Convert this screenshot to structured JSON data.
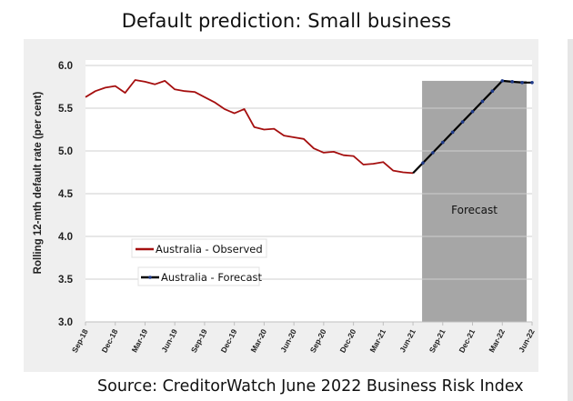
{
  "title": "Default prediction: Small business",
  "source": "Source: CreditorWatch June 2022 Business Risk Index",
  "chart_data": {
    "type": "line",
    "ylabel": "Rolling 12-mth default rate (per cent)",
    "xlabel": "",
    "ylim": [
      3.0,
      6.0
    ],
    "yticks": [
      "3.0",
      "3.5",
      "4.0",
      "4.5",
      "5.0",
      "5.5",
      "6.0"
    ],
    "x_tick_labels": [
      "Sep-18",
      "Dec-18",
      "Mar-19",
      "Jun-19",
      "Sep-19",
      "Dec-19",
      "Mar-20",
      "Jun-20",
      "Sep-20",
      "Dec-20",
      "Mar-21",
      "Jun-21",
      "Sep-21",
      "Dec-21",
      "Mar-22",
      "Jun-22"
    ],
    "grid": true,
    "legend_position": "lower-left",
    "annotation": "Forecast",
    "forecast_region": [
      "Jun-21",
      "Jun-22"
    ],
    "series": [
      {
        "name": "Australia - Observed",
        "color": "#a50f0f",
        "x": [
          "Sep-18",
          "Oct-18",
          "Nov-18",
          "Dec-18",
          "Jan-19",
          "Feb-19",
          "Mar-19",
          "Apr-19",
          "May-19",
          "Jun-19",
          "Jul-19",
          "Aug-19",
          "Sep-19",
          "Oct-19",
          "Nov-19",
          "Dec-19",
          "Jan-20",
          "Feb-20",
          "Mar-20",
          "Apr-20",
          "May-20",
          "Jun-20",
          "Jul-20",
          "Aug-20",
          "Sep-20",
          "Oct-20",
          "Nov-20",
          "Dec-20",
          "Jan-21",
          "Feb-21",
          "Mar-21",
          "Apr-21",
          "May-21",
          "Jun-21"
        ],
        "values": [
          5.63,
          5.7,
          5.74,
          5.76,
          5.68,
          5.83,
          5.81,
          5.78,
          5.82,
          5.72,
          5.7,
          5.69,
          5.63,
          5.57,
          5.49,
          5.44,
          5.49,
          5.28,
          5.25,
          5.26,
          5.18,
          5.16,
          5.14,
          5.03,
          4.98,
          4.99,
          4.95,
          4.94,
          4.84,
          4.85,
          4.87,
          4.77,
          4.75,
          4.74
        ]
      },
      {
        "name": "Australia - Forecast",
        "color": "#000000",
        "marker_color": "#1f3a8a",
        "x": [
          "Jun-21",
          "Jul-21",
          "Aug-21",
          "Sep-21",
          "Oct-21",
          "Nov-21",
          "Dec-21",
          "Jan-22",
          "Feb-22",
          "Mar-22",
          "Apr-22",
          "May-22",
          "Jun-22"
        ],
        "values": [
          4.74,
          4.86,
          4.98,
          5.1,
          5.22,
          5.34,
          5.46,
          5.58,
          5.7,
          5.82,
          5.81,
          5.8,
          5.8
        ]
      }
    ]
  }
}
